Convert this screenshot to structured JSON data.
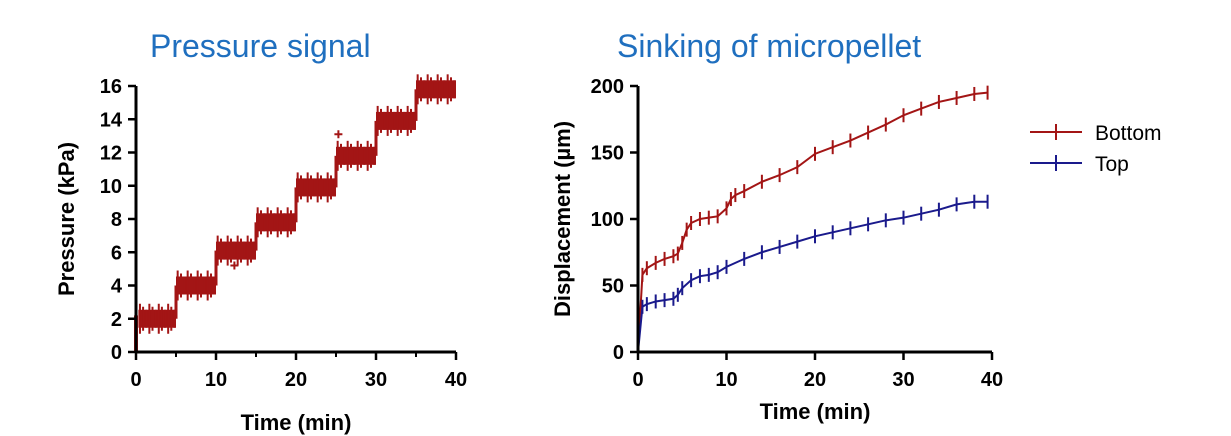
{
  "chart_data": [
    {
      "type": "scatter",
      "title": "Pressure signal",
      "xlabel": "Time (min)",
      "ylabel": "Pressure (kPa)",
      "xlim": [
        0,
        40
      ],
      "ylim": [
        0,
        16
      ],
      "xticks": [
        "0",
        "10",
        "20",
        "30",
        "40"
      ],
      "yticks": [
        "0",
        "2",
        "4",
        "6",
        "8",
        "10",
        "12",
        "14",
        "16"
      ],
      "color": "#a31515",
      "baseline_color": "#333333",
      "steps": [
        {
          "x0": 0.3,
          "x1": 5,
          "y": 2.0
        },
        {
          "x0": 5,
          "x1": 10,
          "y": 4.0
        },
        {
          "x0": 10,
          "x1": 15,
          "y": 6.1
        },
        {
          "x0": 15,
          "x1": 20,
          "y": 7.8
        },
        {
          "x0": 20,
          "x1": 25,
          "y": 9.9
        },
        {
          "x0": 25,
          "x1": 30,
          "y": 11.8
        },
        {
          "x0": 30,
          "x1": 35,
          "y": 13.9
        },
        {
          "x0": 35,
          "x1": 40,
          "y": 15.8
        }
      ],
      "outliers": [
        {
          "x": 25.3,
          "y": 13.1
        },
        {
          "x": 12.3,
          "y": 5.2
        }
      ]
    },
    {
      "type": "line",
      "title": "Sinking of micropellet",
      "xlabel": "Time (min)",
      "ylabel": "Displacement (µm)",
      "xlim": [
        0,
        40
      ],
      "ylim": [
        0,
        200
      ],
      "xticks": [
        "0",
        "10",
        "20",
        "30",
        "40"
      ],
      "yticks": [
        "0",
        "50",
        "100",
        "150",
        "200"
      ],
      "legend_position": "right",
      "series": [
        {
          "name": "Bottom",
          "color": "#a31515",
          "x": [
            0,
            0.5,
            1,
            2,
            3,
            4,
            4.5,
            5,
            5.5,
            6,
            7,
            8,
            9,
            10,
            10.5,
            11,
            12,
            14,
            16,
            18,
            20,
            22,
            24,
            26,
            28,
            30,
            32,
            34,
            36,
            38,
            39.5
          ],
          "y": [
            0,
            58,
            63,
            67,
            70,
            72,
            74,
            82,
            92,
            97,
            100,
            101,
            102,
            108,
            115,
            118,
            121,
            128,
            133,
            139,
            149,
            154,
            159,
            165,
            171,
            178,
            183,
            188,
            191,
            194,
            195
          ]
        },
        {
          "name": "Top",
          "color": "#1a1a8c",
          "x": [
            0,
            0.5,
            1,
            2,
            3,
            4,
            4.5,
            5,
            6,
            7,
            8,
            9,
            10,
            12,
            14,
            16,
            18,
            20,
            22,
            24,
            26,
            28,
            30,
            32,
            34,
            36,
            38,
            39.5
          ],
          "y": [
            0,
            34,
            36,
            38,
            39,
            40,
            43,
            48,
            54,
            57,
            58,
            60,
            64,
            70,
            75,
            79,
            83,
            87,
            90,
            93,
            96,
            99,
            101,
            104,
            107,
            111,
            113,
            113
          ]
        }
      ]
    }
  ]
}
